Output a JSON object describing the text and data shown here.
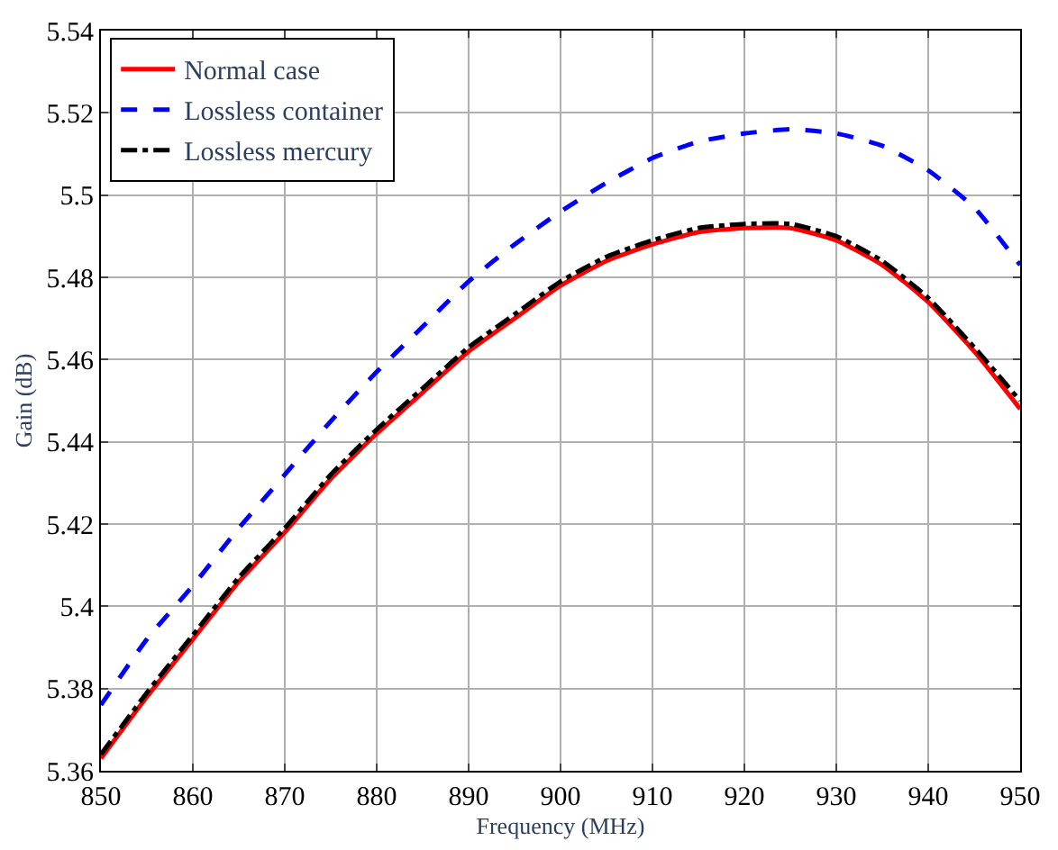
{
  "chart_data": {
    "type": "line",
    "xlabel": "Frequency (MHz)",
    "ylabel": "Gain (dB)",
    "x": [
      850,
      855,
      860,
      865,
      870,
      875,
      880,
      885,
      890,
      895,
      900,
      905,
      910,
      915,
      920,
      925,
      930,
      935,
      940,
      945,
      950
    ],
    "series": [
      {
        "name": "Normal case",
        "color": "#ff0000",
        "line_style": "solid",
        "values": [
          5.363,
          5.378,
          5.392,
          5.406,
          5.418,
          5.431,
          5.442,
          5.452,
          5.462,
          5.47,
          5.478,
          5.484,
          5.488,
          5.491,
          5.492,
          5.492,
          5.489,
          5.483,
          5.474,
          5.462,
          5.448
        ]
      },
      {
        "name": "Lossless container",
        "color": "#0000ff",
        "line_style": "dashed",
        "values": [
          5.376,
          5.392,
          5.405,
          5.419,
          5.432,
          5.445,
          5.457,
          5.468,
          5.479,
          5.488,
          5.496,
          5.503,
          5.509,
          5.513,
          5.515,
          5.516,
          5.515,
          5.512,
          5.506,
          5.497,
          5.483
        ]
      },
      {
        "name": "Lossless mercury",
        "color": "#000000",
        "line_style": "dashdot",
        "values": [
          5.364,
          5.379,
          5.393,
          5.407,
          5.419,
          5.432,
          5.443,
          5.453,
          5.463,
          5.471,
          5.479,
          5.485,
          5.489,
          5.492,
          5.493,
          5.493,
          5.49,
          5.484,
          5.475,
          5.463,
          5.45
        ]
      }
    ],
    "xlim": [
      850,
      950
    ],
    "xticks": [
      850,
      860,
      870,
      880,
      890,
      900,
      910,
      920,
      930,
      940,
      950
    ],
    "ylim": [
      5.36,
      5.54
    ],
    "yticks": [
      5.36,
      5.38,
      5.4,
      5.42,
      5.44,
      5.46,
      5.48,
      5.5,
      5.52,
      5.54
    ],
    "grid": true,
    "legend": "top left",
    "marker": "none"
  }
}
